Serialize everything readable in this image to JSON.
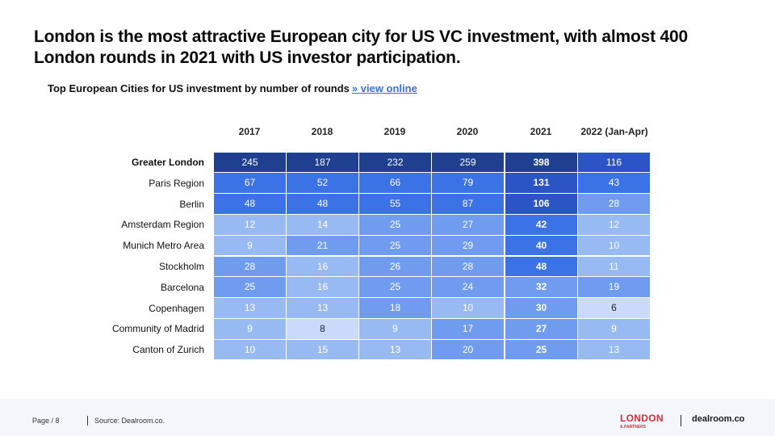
{
  "headline": "London is the most attractive European city for US VC investment, with almost 400 London rounds in 2021 with US investor participation.",
  "subtitle": {
    "text": "Top European Cities for US investment by number of rounds",
    "link": "» view online"
  },
  "footer": {
    "page": "Page / 8",
    "source": "Source: Dealroom.co."
  },
  "logos": {
    "london": "LONDON",
    "partners": "& PARTNERS",
    "dealroom": "dealroom.co"
  },
  "colors": {
    "darkest": "#1f3f8f",
    "dark": "#2b55c4",
    "mid": "#3b73e6",
    "light": "#6f9cee",
    "lighter": "#98baf2",
    "pale": "#c9dafa"
  },
  "chart_data": {
    "type": "heatmap",
    "title": "Top European Cities for US investment by number of rounds",
    "columns": [
      "2017",
      "2018",
      "2019",
      "2020",
      "2021",
      "2022 (Jan-Apr)"
    ],
    "rows": [
      {
        "city": "Greater London",
        "values": [
          245,
          187,
          232,
          259,
          398,
          116
        ]
      },
      {
        "city": "Paris Region",
        "values": [
          67,
          52,
          66,
          79,
          131,
          43
        ]
      },
      {
        "city": "Berlin",
        "values": [
          48,
          48,
          55,
          87,
          106,
          28
        ]
      },
      {
        "city": "Amsterdam Region",
        "values": [
          12,
          14,
          25,
          27,
          42,
          12
        ]
      },
      {
        "city": "Munich Metro Area",
        "values": [
          9,
          21,
          25,
          29,
          40,
          10
        ]
      },
      {
        "city": "Stockholm",
        "values": [
          28,
          16,
          26,
          28,
          48,
          11
        ]
      },
      {
        "city": "Barcelona",
        "values": [
          25,
          16,
          25,
          24,
          32,
          19
        ]
      },
      {
        "city": "Copenhagen",
        "values": [
          13,
          13,
          18,
          10,
          30,
          6
        ]
      },
      {
        "city": "Community of Madrid",
        "values": [
          9,
          8,
          9,
          17,
          27,
          9
        ]
      },
      {
        "city": "Canton of Zurich",
        "values": [
          10,
          15,
          13,
          20,
          25,
          13
        ]
      }
    ]
  }
}
